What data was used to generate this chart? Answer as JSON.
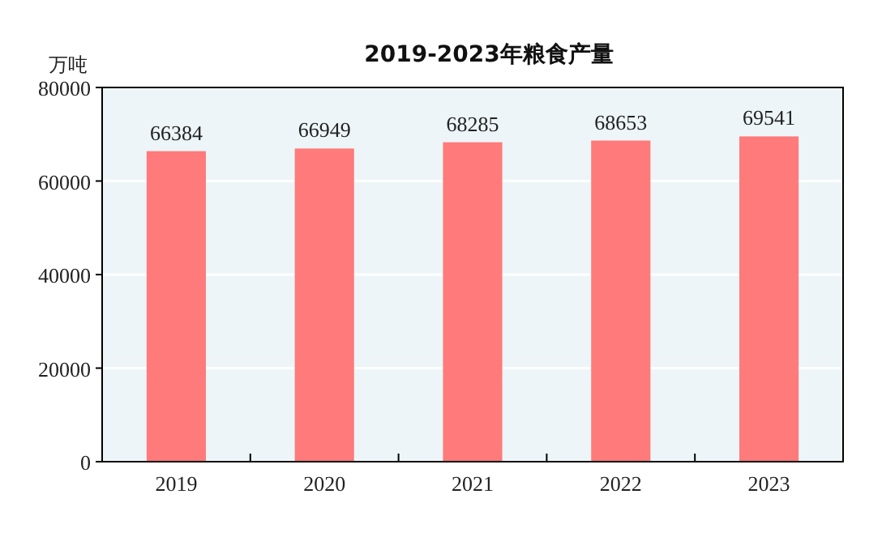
{
  "chart_data": {
    "type": "bar",
    "title": "2019-2023年粮食产量",
    "ylabel": "万吨",
    "categories": [
      "2019",
      "2020",
      "2021",
      "2022",
      "2023"
    ],
    "values": [
      66384,
      66949,
      68285,
      68653,
      69541
    ],
    "color": "#ff7a7a",
    "ylim": [
      0,
      80000
    ],
    "yticks": [
      0,
      20000,
      40000,
      60000,
      80000
    ],
    "grid": "y",
    "data_labels": true
  }
}
